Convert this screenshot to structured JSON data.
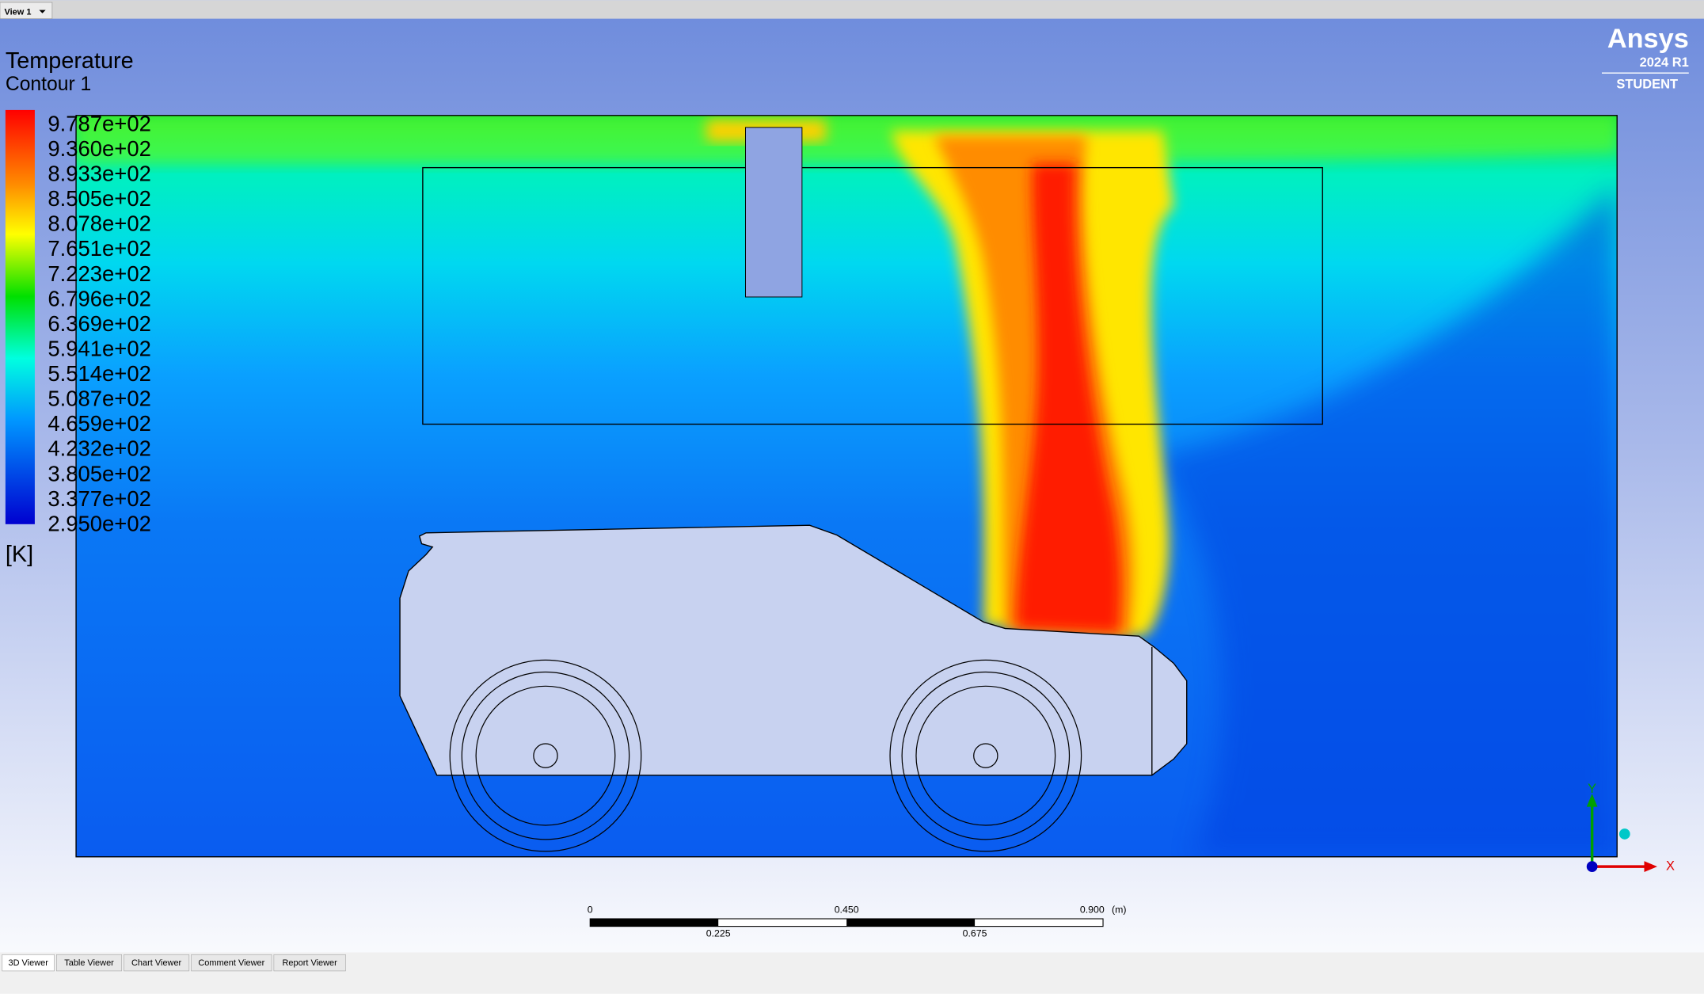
{
  "view_tab": "View 1",
  "legend": {
    "title": "Temperature",
    "subtitle": "Contour 1",
    "labels": [
      "9.787e+02",
      "9.360e+02",
      "8.933e+02",
      "8.505e+02",
      "8.078e+02",
      "7.651e+02",
      "7.223e+02",
      "6.796e+02",
      "6.369e+02",
      "5.941e+02",
      "5.514e+02",
      "5.087e+02",
      "4.659e+02",
      "4.232e+02",
      "3.805e+02",
      "3.377e+02",
      "2.950e+02"
    ],
    "unit": "[K]"
  },
  "logo": {
    "brand": "Ansys",
    "version": "2024 R1",
    "edition": "STUDENT"
  },
  "scale_bar": {
    "top_labels": [
      "0",
      "0.450",
      "0.900"
    ],
    "unit": "(m)",
    "bottom_labels": [
      "0.225",
      "0.675"
    ]
  },
  "triad": {
    "y": "Y",
    "x": "X"
  },
  "tabs": [
    "3D Viewer",
    "Table Viewer",
    "Chart Viewer",
    "Comment Viewer",
    "Report Viewer"
  ]
}
